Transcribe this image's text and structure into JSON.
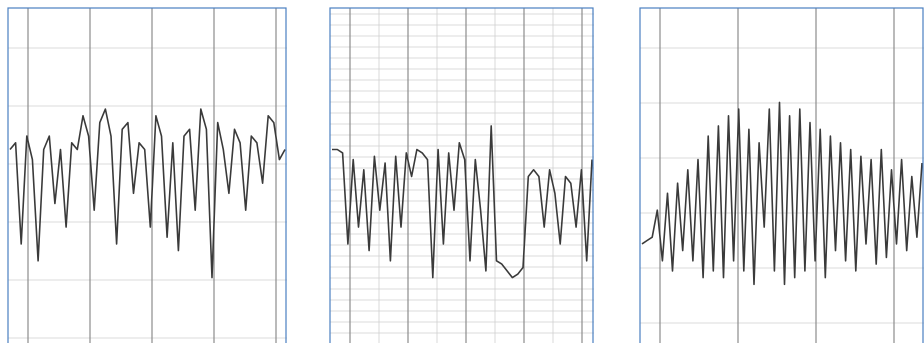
{
  "chart_data": [
    {
      "type": "line",
      "ylim": [
        0,
        100
      ],
      "grid": true,
      "color": "#3a3a3a",
      "series": [
        {
          "values": [
            58,
            60,
            30,
            62,
            55,
            25,
            58,
            62,
            42,
            58,
            35,
            60,
            58,
            68,
            62,
            40,
            66,
            70,
            62,
            30,
            64,
            66,
            45,
            60,
            58,
            35,
            68,
            62,
            32,
            60,
            28,
            62,
            64,
            40,
            70,
            64,
            20,
            66,
            58,
            45,
            64,
            60,
            40,
            62,
            60,
            48,
            68,
            66,
            55,
            58
          ]
        }
      ]
    },
    {
      "type": "line",
      "ylim": [
        0,
        100
      ],
      "grid": true,
      "color": "#3a3a3a",
      "series": [
        {
          "values": [
            58,
            58,
            57,
            30,
            55,
            35,
            52,
            28,
            56,
            40,
            54,
            25,
            56,
            35,
            57,
            50,
            58,
            57,
            55,
            20,
            58,
            30,
            57,
            40,
            60,
            55,
            25,
            55,
            40,
            22,
            65,
            25,
            24,
            22,
            20,
            21,
            23,
            50,
            52,
            50,
            35,
            52,
            45,
            30,
            50,
            48,
            35,
            52,
            25,
            55
          ]
        }
      ]
    },
    {
      "type": "line",
      "ylim": [
        0,
        100
      ],
      "grid": true,
      "color": "#3a3a3a",
      "series": [
        {
          "values": [
            30,
            31,
            32,
            40,
            25,
            45,
            22,
            48,
            28,
            52,
            25,
            55,
            20,
            62,
            22,
            65,
            20,
            68,
            25,
            70,
            22,
            64,
            18,
            60,
            35,
            70,
            22,
            72,
            18,
            68,
            20,
            70,
            22,
            66,
            25,
            64,
            20,
            62,
            28,
            60,
            25,
            58,
            22,
            56,
            30,
            55,
            24,
            58,
            26,
            52,
            30,
            55,
            28,
            50,
            32,
            54
          ]
        }
      ]
    }
  ]
}
